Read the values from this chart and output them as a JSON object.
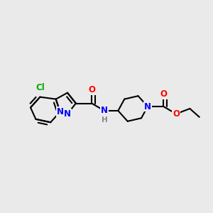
{
  "background_color": "#eaeaea",
  "bond_color": "#000000",
  "bond_width": 1.5,
  "figsize": [
    3.0,
    3.0
  ],
  "dpi": 100,
  "atoms": {
    "Cl": {
      "color": "#00aa00"
    },
    "N": {
      "color": "#0000ff"
    },
    "O": {
      "color": "#ff0000"
    },
    "C": {
      "color": "#000000"
    }
  }
}
